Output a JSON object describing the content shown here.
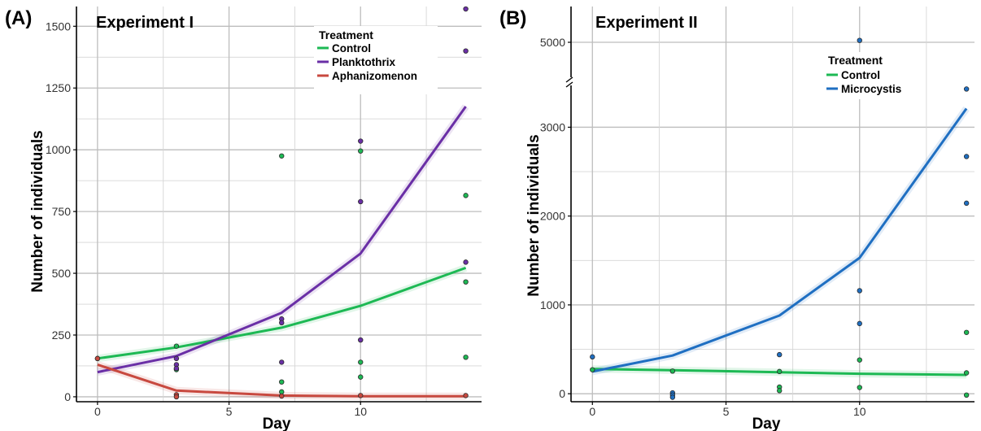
{
  "chart_data": [
    {
      "type": "line",
      "panel_label": "(A)",
      "title": "Experiment I",
      "xlabel": "Day",
      "ylabel": "Number of individuals",
      "xlim": [
        -0.8,
        14.6
      ],
      "ylim": [
        -20,
        1580
      ],
      "x_ticks": [
        0,
        5,
        10
      ],
      "y_ticks": [
        0,
        250,
        500,
        750,
        1000,
        1250,
        1500
      ],
      "grid": true,
      "legend": {
        "title": "Treatment",
        "position": "top-right"
      },
      "series": [
        {
          "name": "Control",
          "color": "#1db954",
          "line": {
            "x": [
              0,
              3,
              7,
              10,
              14
            ],
            "y": [
              155,
              200,
              280,
              368,
              522
            ]
          },
          "points": [
            {
              "x": 0,
              "y": 155
            },
            {
              "x": 3,
              "y": 205
            },
            {
              "x": 3,
              "y": 110
            },
            {
              "x": 7,
              "y": 975
            },
            {
              "x": 7,
              "y": 60
            },
            {
              "x": 7,
              "y": 20
            },
            {
              "x": 10,
              "y": 995
            },
            {
              "x": 10,
              "y": 140
            },
            {
              "x": 10,
              "y": 80
            },
            {
              "x": 14,
              "y": 815
            },
            {
              "x": 14,
              "y": 465
            },
            {
              "x": 14,
              "y": 160
            }
          ]
        },
        {
          "name": "Planktothrix",
          "color": "#6a2fa6",
          "line": {
            "x": [
              0,
              3,
              7,
              10,
              14
            ],
            "y": [
              100,
              165,
              340,
              580,
              1175
            ]
          },
          "points": [
            {
              "x": 3,
              "y": 155
            },
            {
              "x": 3,
              "y": 130
            },
            {
              "x": 3,
              "y": 115
            },
            {
              "x": 7,
              "y": 315
            },
            {
              "x": 7,
              "y": 300
            },
            {
              "x": 7,
              "y": 140
            },
            {
              "x": 10,
              "y": 1035
            },
            {
              "x": 10,
              "y": 790
            },
            {
              "x": 10,
              "y": 230
            },
            {
              "x": 14,
              "y": 1570
            },
            {
              "x": 14,
              "y": 1400
            },
            {
              "x": 14,
              "y": 545
            }
          ]
        },
        {
          "name": "Aphanizomenon",
          "color": "#c8493f",
          "line": {
            "x": [
              0,
              3,
              7,
              10,
              14
            ],
            "y": [
              130,
              25,
              5,
              2,
              2
            ]
          },
          "points": [
            {
              "x": 0,
              "y": 155
            },
            {
              "x": 3,
              "y": 8
            },
            {
              "x": 3,
              "y": 0
            },
            {
              "x": 7,
              "y": 3
            },
            {
              "x": 10,
              "y": 5
            },
            {
              "x": 14,
              "y": 5
            }
          ]
        }
      ]
    },
    {
      "type": "line",
      "panel_label": "(B)",
      "title": "Experiment II",
      "xlabel": "Day",
      "ylabel": "Number of individuals",
      "xlim": [
        -0.8,
        14.3
      ],
      "ylim": [
        -90,
        3480
      ],
      "upper_segment_ylim": [
        4620,
        5380
      ],
      "axis_break": true,
      "x_ticks": [
        0,
        5,
        10
      ],
      "y_ticks": [
        0,
        1000,
        2000,
        3000
      ],
      "upper_y_ticks": [
        5000
      ],
      "grid": true,
      "legend": {
        "title": "Treatment",
        "position": "top-right"
      },
      "series": [
        {
          "name": "Control",
          "color": "#1db954",
          "line": {
            "x": [
              0,
              3,
              7,
              10,
              14
            ],
            "y": [
              278,
              265,
              242,
              225,
              212
            ]
          },
          "points": [
            {
              "x": 0,
              "y": 270
            },
            {
              "x": 3,
              "y": 255
            },
            {
              "x": 7,
              "y": 250
            },
            {
              "x": 7,
              "y": 75
            },
            {
              "x": 7,
              "y": 35
            },
            {
              "x": 10,
              "y": 380
            },
            {
              "x": 10,
              "y": 70
            },
            {
              "x": 14,
              "y": 690
            },
            {
              "x": 14,
              "y": 235
            },
            {
              "x": 14,
              "y": -15
            }
          ]
        },
        {
          "name": "Microcystis",
          "color": "#1f6fc2",
          "line": {
            "x": [
              0,
              3,
              7,
              10,
              14
            ],
            "y": [
              250,
              430,
              880,
              1530,
              3210
            ]
          },
          "points": [
            {
              "x": 0,
              "y": 415
            },
            {
              "x": 3,
              "y": 10
            },
            {
              "x": 3,
              "y": -15
            },
            {
              "x": 3,
              "y": -40
            },
            {
              "x": 7,
              "y": 440
            },
            {
              "x": 10,
              "y": 5020
            },
            {
              "x": 10,
              "y": 1160
            },
            {
              "x": 10,
              "y": 790
            },
            {
              "x": 14,
              "y": 3430
            },
            {
              "x": 14,
              "y": 2670
            },
            {
              "x": 14,
              "y": 2145
            }
          ]
        }
      ]
    }
  ]
}
